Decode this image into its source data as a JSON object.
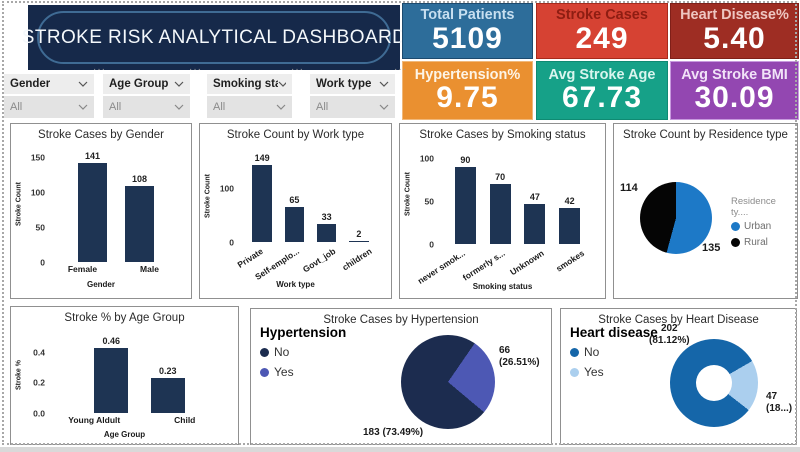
{
  "page": {
    "title": "STROKE RISK ANALYTICAL DASHBOARD"
  },
  "icons": {
    "more_options": "···"
  },
  "kpis": [
    {
      "label": "Total Patients",
      "value": "5109",
      "bg": "#2d6d9a",
      "border": "#1c4a6e",
      "label_color": "#c7dff0",
      "value_color": "#ffffff"
    },
    {
      "label": "Stroke Cases",
      "value": "249",
      "bg": "#d64233",
      "border": "#a82a1c",
      "label_color": "#8e1d12",
      "value_color": "#ffffff"
    },
    {
      "label": "Heart Disease%",
      "value": "5.40",
      "bg": "#9e2d23",
      "border": "#801f18",
      "label_color": "#eec6c1",
      "value_color": "#ffffff"
    },
    {
      "label": "Hypertension%",
      "value": "9.75",
      "bg": "#ea9030",
      "border": "#f0b87a",
      "label_color": "#fdf4e6",
      "value_color": "#ffffff"
    },
    {
      "label": "Avg Stroke Age",
      "value": "67.73",
      "bg": "#16a188",
      "border": "#0f8a72",
      "label_color": "#d9f5ee",
      "value_color": "#ffffff"
    },
    {
      "label": "Avg Stroke BMI",
      "value": "30.09",
      "bg": "#9347b1",
      "border": "#c79ade",
      "label_color": "#f1e2f8",
      "value_color": "#ffffff"
    }
  ],
  "slicers": [
    {
      "name": "Gender",
      "value": "All"
    },
    {
      "name": "Age Group",
      "value": "All"
    },
    {
      "name": "Smoking sta...",
      "value": "All"
    },
    {
      "name": "Work type",
      "value": "All"
    }
  ],
  "chart_data": [
    {
      "id": "stroke-cases-by-gender",
      "type": "bar",
      "title": "Stroke Cases by Gender",
      "xlabel": "Gender",
      "ylabel": "Stroke Count",
      "categories": [
        "Female",
        "Male"
      ],
      "values": [
        141,
        108
      ],
      "ylim": [
        0,
        160
      ],
      "yticks": [
        0,
        50,
        100,
        150
      ],
      "ytick_labels": [
        "0",
        "50",
        "100",
        "150"
      ],
      "bar_color": "#1e3453",
      "rotate_labels": false,
      "grid": false
    },
    {
      "id": "stroke-count-by-work-type",
      "type": "bar",
      "title": "Stroke Count by Work type",
      "xlabel": "Work type",
      "ylabel": "Stroke Count",
      "categories": [
        "Private",
        "Self-emplo...",
        "Govt_job",
        "children"
      ],
      "values": [
        149,
        65,
        33,
        2
      ],
      "ylim": [
        0,
        165
      ],
      "yticks": [
        0,
        100
      ],
      "ytick_labels": [
        "0",
        "100"
      ],
      "bar_color": "#1e3453",
      "rotate_labels": true,
      "grid": false
    },
    {
      "id": "stroke-cases-by-smoking-status",
      "type": "bar",
      "title": "Stroke Cases by Smoking status",
      "xlabel": "Smoking status",
      "ylabel": "Stroke Count",
      "categories": [
        "never smok...",
        "formerly s...",
        "Unknown",
        "smokes"
      ],
      "values": [
        90,
        70,
        47,
        42
      ],
      "ylim": [
        0,
        112
      ],
      "yticks": [
        0,
        50,
        100
      ],
      "ytick_labels": [
        "0",
        "50",
        "100"
      ],
      "bar_color": "#1e3453",
      "rotate_labels": true,
      "grid": false
    },
    {
      "id": "stroke-count-by-residence-type",
      "type": "pie",
      "title": "Stroke Count by Residence type",
      "legend_title": "Residence ty....",
      "legend_position": "right",
      "start_angle": 0,
      "slices": [
        {
          "label": "Urban",
          "value": 135,
          "color": "#1d79c7"
        },
        {
          "label": "Rural",
          "value": 114,
          "color": "#050505"
        }
      ],
      "callouts": [
        {
          "text": "114"
        },
        {
          "text": "135"
        }
      ]
    },
    {
      "id": "stroke-pct-by-age-group",
      "type": "bar",
      "title": "Stroke % by Age Group",
      "xlabel": "Age Group",
      "ylabel": "Stroke %",
      "categories": [
        "Young Aldult",
        "Child"
      ],
      "values": [
        0.46,
        0.23
      ],
      "ylim": [
        0,
        0.5
      ],
      "yticks": [
        0,
        0.2,
        0.4
      ],
      "ytick_labels": [
        "0.0",
        "0.2",
        "0.4"
      ],
      "bar_color": "#1e3453",
      "rotate_labels": false,
      "grid": false
    },
    {
      "id": "stroke-cases-by-hypertension",
      "type": "pie",
      "title": "Stroke Cases by Hypertension",
      "legend_title": "Hypertension",
      "legend_position": "top-left",
      "start_angle": 130,
      "slices": [
        {
          "label": "No",
          "value": 183,
          "color": "#1c2c4f"
        },
        {
          "label": "Yes",
          "value": 66,
          "color": "#4d58b4"
        }
      ],
      "callouts": [
        {
          "text": "66\n(26.51%)"
        },
        {
          "text": "183 (73.49%)"
        }
      ]
    },
    {
      "id": "stroke-cases-by-heart-disease",
      "type": "donut",
      "title": "Stroke Cases by Heart Disease",
      "legend_title": "Heart disease",
      "legend_position": "top-left",
      "start_angle": 128,
      "slices": [
        {
          "label": "No",
          "value": 202,
          "color": "#1566a9"
        },
        {
          "label": "Yes",
          "value": 47,
          "color": "#abcfee"
        }
      ],
      "callouts": [
        {
          "text": "202\n(81.12%)"
        },
        {
          "text": "47\n(18...)"
        }
      ]
    }
  ]
}
